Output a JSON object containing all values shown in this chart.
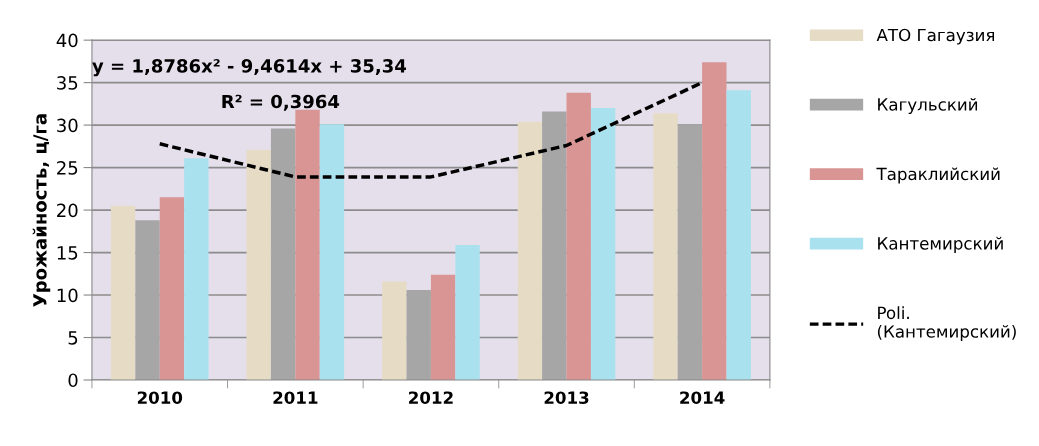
{
  "chart_data": {
    "type": "bar",
    "ylabel": "Урожайность, ц/га",
    "categories": [
      "2010",
      "2011",
      "2012",
      "2013",
      "2014"
    ],
    "series": [
      {
        "name": "АТО Гагаузия",
        "color": "#e6dcc6",
        "values": [
          20.5,
          27.1,
          11.6,
          30.4,
          31.4
        ]
      },
      {
        "name": "Кагульский",
        "color": "#a6a6a6",
        "values": [
          18.8,
          29.6,
          10.6,
          31.6,
          30.1
        ]
      },
      {
        "name": "Тараклийский",
        "color": "#d99594",
        "values": [
          21.5,
          31.8,
          12.4,
          33.8,
          37.4
        ]
      },
      {
        "name": "Кантемирский",
        "color": "#a9e2ee",
        "values": [
          26.1,
          30.1,
          15.9,
          32.0,
          34.1
        ]
      },
      {
        "name": "Poli. (Кантемирский)",
        "type": "line",
        "color": "#000000",
        "line_style": "dashed",
        "marker": "none",
        "values": [
          27.8,
          23.9,
          23.9,
          27.6,
          35.0
        ]
      }
    ],
    "ylim": [
      0,
      40
    ],
    "yticks": [
      0,
      5,
      10,
      15,
      20,
      25,
      30,
      35,
      40
    ],
    "grid": "y",
    "legend": "right",
    "annotations": [
      "y = 1,8786x² - 9,4614x + 35,34",
      "R² = 0,3964"
    ]
  }
}
